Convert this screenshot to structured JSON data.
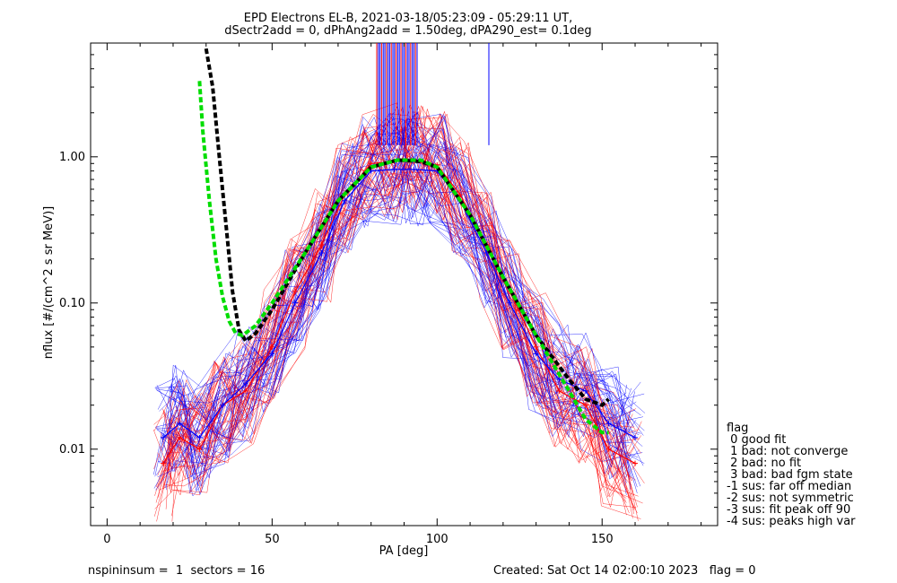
{
  "title_line1": "EPD Electrons EL-B, 2021-03-18/05:23:09 - 05:29:11 UT,",
  "title_line2": "dSectr2add = 0, dPhAng2add = 1.50deg, dPA290_est=    0.1deg",
  "footer_left": "nspininsum =  1  sectors = 16",
  "footer_right": "Created: Sat Oct 14 02:00:10 2023   flag = 0",
  "legend": {
    "title": "flag",
    "items": [
      " 0 good fit",
      " 1 bad: not converge",
      " 2 bad: no fit",
      " 3 bad: bad fgm state",
      "-1 sus: far off median",
      "-2 sus: not symmetric",
      "-3 sus: fit peak off 90",
      "-4 sus: peaks high var"
    ]
  },
  "colors": {
    "series_red": "#ff0000",
    "series_blue": "#0000ff",
    "fit_black": "#000000",
    "fit_green": "#00dd00"
  },
  "chart_data": {
    "type": "line",
    "xlabel": "PA [deg]",
    "ylabel": "nflux [#/(cm^2 s sr MeV)]",
    "xlim": [
      -5,
      185
    ],
    "ylim": [
      0.003,
      6.0
    ],
    "yscale": "log",
    "x_ticks": [
      0,
      50,
      100,
      150
    ],
    "x_tick_labels": [
      "0",
      "50",
      "100",
      "150"
    ],
    "y_ticks": [
      0.01,
      0.1,
      1.0
    ],
    "y_tick_labels": [
      "0.01",
      "0.10",
      "1.00"
    ],
    "series": [
      {
        "color": "red",
        "x": [
          17,
          22,
          28,
          35,
          42,
          50,
          57,
          65,
          72,
          80,
          87,
          93,
          100,
          107,
          115,
          122,
          130,
          137,
          145,
          152,
          160
        ],
        "y": [
          0.008,
          0.012,
          0.01,
          0.02,
          0.025,
          0.05,
          0.12,
          0.25,
          0.55,
          0.9,
          0.93,
          0.93,
          0.88,
          0.55,
          0.25,
          0.12,
          0.05,
          0.025,
          0.02,
          0.01,
          0.008
        ]
      },
      {
        "color": "blue",
        "x": [
          17,
          22,
          28,
          35,
          42,
          50,
          57,
          65,
          72,
          80,
          87,
          93,
          100,
          107,
          115,
          122,
          130,
          137,
          145,
          152,
          160
        ],
        "y": [
          0.012,
          0.015,
          0.012,
          0.02,
          0.028,
          0.045,
          0.1,
          0.22,
          0.5,
          0.8,
          0.82,
          0.82,
          0.8,
          0.5,
          0.22,
          0.1,
          0.045,
          0.03,
          0.025,
          0.015,
          0.012
        ]
      },
      {
        "color": "black",
        "style": "dashed-fit",
        "x": [
          30,
          32,
          34,
          36,
          38,
          40,
          42,
          45,
          50,
          60,
          70,
          80,
          88,
          95,
          100,
          110,
          120,
          130,
          140,
          145,
          150,
          152
        ],
        "y": [
          5.5,
          3.0,
          1.0,
          0.35,
          0.12,
          0.065,
          0.055,
          0.062,
          0.09,
          0.22,
          0.5,
          0.85,
          0.95,
          0.93,
          0.85,
          0.4,
          0.15,
          0.06,
          0.03,
          0.022,
          0.02,
          0.022
        ]
      },
      {
        "color": "green",
        "style": "dashed-fit",
        "x": [
          28,
          29,
          31,
          33,
          35,
          37,
          39,
          41,
          45,
          50,
          60,
          70,
          80,
          88,
          95,
          100,
          110,
          120,
          130,
          140,
          145,
          150,
          152
        ],
        "y": [
          3.3,
          1.5,
          0.5,
          0.2,
          0.11,
          0.075,
          0.062,
          0.06,
          0.07,
          0.1,
          0.22,
          0.5,
          0.85,
          0.95,
          0.95,
          0.85,
          0.4,
          0.15,
          0.06,
          0.025,
          0.016,
          0.013,
          0.013
        ]
      }
    ]
  }
}
